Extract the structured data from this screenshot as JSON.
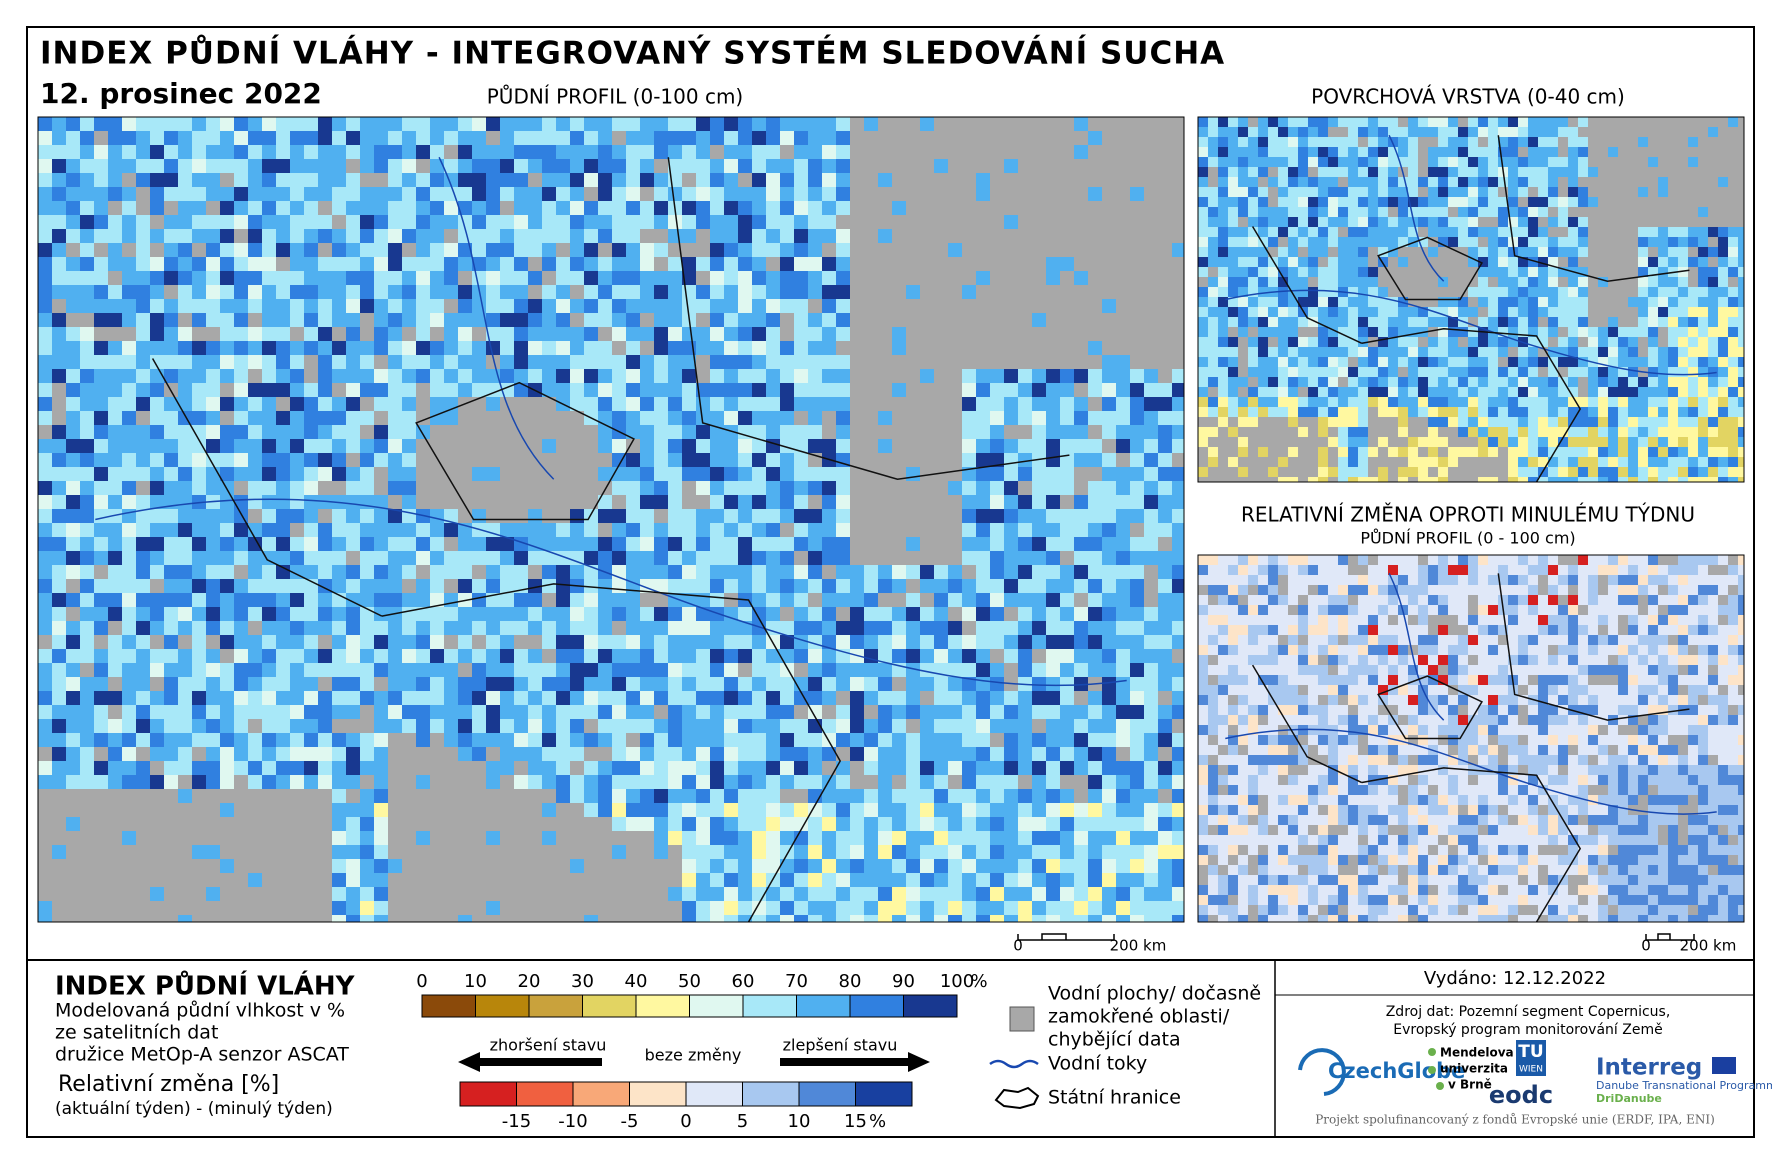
{
  "header": {
    "title": "INDEX PŮDNÍ VLÁHY - INTEGROVANÝ SYSTÉM SLEDOVÁNÍ SUCHA",
    "date": "12. prosinec 2022"
  },
  "maps": {
    "main": {
      "title": "PŮDNÍ PROFIL (0-100 cm)",
      "scale": [
        "0",
        "200 km"
      ]
    },
    "surface": {
      "title": "POVRCHOVÁ VRSTVA (0-40 cm)"
    },
    "change": {
      "title": "RELATIVNÍ ZMĚNA OPROTI MINULÉMU TÝDNU",
      "subtitle": "PŮDNÍ PROFIL (0 - 100 cm)",
      "scale": [
        "0",
        "200 km"
      ]
    }
  },
  "legend": {
    "title": "INDEX PŮDNÍ VLÁHY",
    "description": [
      "Modelovaná půdní vlhkost v %",
      "ze satelitních dat",
      "družice MetOp-A senzor ASCAT"
    ],
    "moisture_scale": {
      "ticks": [
        0,
        10,
        20,
        30,
        40,
        50,
        60,
        70,
        80,
        90,
        100
      ],
      "unit": "%",
      "range": [
        0,
        100
      ],
      "colors": [
        "#8b4a0a",
        "#b8860b",
        "#c9a23c",
        "#e2d462",
        "#fff8a0",
        "#e0f8f0",
        "#a8e8f8",
        "#50b0f0",
        "#3080e0",
        "#183890"
      ]
    },
    "change_title": "Relativní změna [%]",
    "change_note": "(aktuální týden) - (minulý týden)",
    "change_scale": {
      "worse": "zhoršení stavu",
      "same": "beze změny",
      "better": "zlepšení stavu",
      "ticks": [
        -15,
        -10,
        -5,
        0,
        5,
        10,
        15
      ],
      "unit": "%",
      "range": [
        -20,
        20
      ],
      "colors": [
        "#d62020",
        "#f06040",
        "#f8a878",
        "#fde4c8",
        "#e0e8f8",
        "#a8c8f0",
        "#5088d8",
        "#1840a0"
      ]
    },
    "items": {
      "water": [
        "Vodní plochy/ dočasně",
        "zamokřené oblasti/",
        "chybějící data"
      ],
      "rivers": "Vodní toky",
      "borders": "Státní hranice"
    }
  },
  "footer": {
    "issued": "Vydáno: 12.12.2022",
    "source": [
      "Zdroj dat: Pozemní segment Copernicus,",
      "Evropský program monitorování Země"
    ],
    "logos": {
      "czechglobe": "CzechGlobe",
      "mendelu": [
        "Mendelova",
        "univerzita",
        "v Brně"
      ],
      "tu": "TU",
      "wien": "WIEN",
      "eodc": "eodc",
      "interreg": "Interreg",
      "programme": "Danube Transnational Programme",
      "project": "DriDanube"
    },
    "funding": "Projekt spolufinancovaný z fondů Evropské unie (ERDF, IPA, ENI)"
  }
}
